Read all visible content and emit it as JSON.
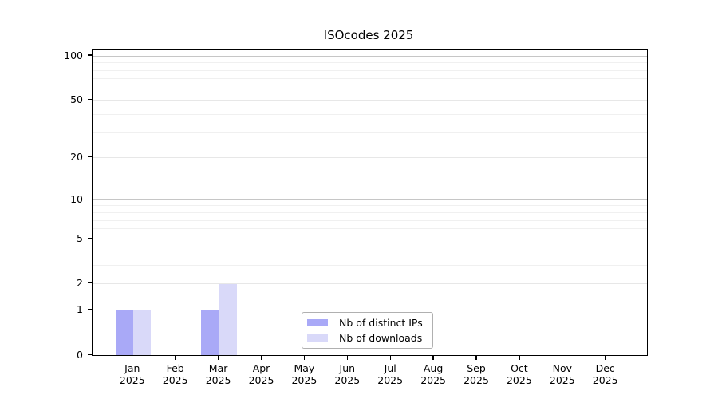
{
  "chart_data": {
    "type": "bar",
    "title": "ISOcodes 2025",
    "categories": [
      "Jan",
      "Feb",
      "Mar",
      "Apr",
      "May",
      "Jun",
      "Jul",
      "Aug",
      "Sep",
      "Oct",
      "Nov",
      "Dec"
    ],
    "year_label": "2025",
    "series": [
      {
        "name": "Nb of distinct IPs",
        "color": "#a9a9f7",
        "values": [
          1,
          0,
          1,
          0,
          0,
          0,
          0,
          0,
          0,
          0,
          0,
          0
        ]
      },
      {
        "name": "Nb of downloads",
        "color": "#d9d9f9",
        "values": [
          1,
          0,
          2,
          0,
          0,
          0,
          0,
          0,
          0,
          0,
          0,
          0
        ]
      }
    ],
    "y_ticks": [
      0,
      1,
      2,
      5,
      10,
      20,
      50,
      100
    ],
    "y_major_decades": [
      1,
      10,
      100
    ],
    "y_minor_ticks": [
      3,
      4,
      6,
      7,
      8,
      9,
      30,
      40,
      60,
      70,
      80,
      90
    ],
    "ylim": [
      0,
      110
    ],
    "scale": "log(1+y)",
    "grid": true,
    "legend_position": "lower center",
    "style": {
      "axis_color": "#000000",
      "grid_major_color": "#c6c6c6",
      "grid_minor_color": "#f0f0f0",
      "background": "#ffffff"
    }
  }
}
